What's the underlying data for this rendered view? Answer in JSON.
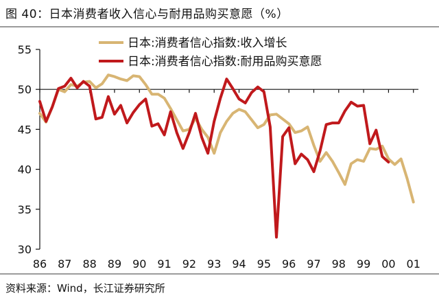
{
  "figure": {
    "title": "图 40：日本消费者收入信心与耐用品购买意愿（%）",
    "source": "资料来源：Wind，长江证券研究所"
  },
  "chart_data": {
    "type": "line",
    "title": "",
    "xlabel": "",
    "ylabel": "",
    "ylim": [
      30,
      55
    ],
    "xlim": [
      1986.0,
      2001.2
    ],
    "yticks": [
      30,
      35,
      40,
      45,
      50,
      55
    ],
    "xtick_labels": [
      "86",
      "87",
      "88",
      "89",
      "90",
      "91",
      "92",
      "93",
      "94",
      "95",
      "96",
      "97",
      "98",
      "99",
      "00",
      "01"
    ],
    "reference_line": 50,
    "legend_position": "top",
    "colors": {
      "income": "#d8b573",
      "durable": "#c0191c"
    },
    "series": [
      {
        "name": "日本:消费者信心指数:收入增长",
        "color": "#d8b573",
        "points": [
          [
            1986.0,
            47.0
          ],
          [
            1986.25,
            45.9
          ],
          [
            1986.5,
            47.8
          ],
          [
            1986.75,
            50.0
          ],
          [
            1987.0,
            49.7
          ],
          [
            1987.25,
            50.6
          ],
          [
            1987.5,
            50.4
          ],
          [
            1987.75,
            50.9
          ],
          [
            1988.0,
            51.0
          ],
          [
            1988.25,
            50.2
          ],
          [
            1988.5,
            50.7
          ],
          [
            1988.75,
            51.8
          ],
          [
            1989.0,
            51.6
          ],
          [
            1989.25,
            51.3
          ],
          [
            1989.5,
            51.1
          ],
          [
            1989.75,
            51.7
          ],
          [
            1990.0,
            51.6
          ],
          [
            1990.25,
            50.6
          ],
          [
            1990.5,
            49.4
          ],
          [
            1990.75,
            49.4
          ],
          [
            1991.0,
            48.9
          ],
          [
            1991.25,
            47.6
          ],
          [
            1991.5,
            46.2
          ],
          [
            1991.75,
            44.8
          ],
          [
            1992.0,
            45.0
          ],
          [
            1992.25,
            46.4
          ],
          [
            1992.5,
            45.0
          ],
          [
            1992.75,
            44.0
          ],
          [
            1993.0,
            42.0
          ],
          [
            1993.25,
            44.6
          ],
          [
            1993.5,
            46.0
          ],
          [
            1993.75,
            47.0
          ],
          [
            1994.0,
            47.5
          ],
          [
            1994.25,
            47.2
          ],
          [
            1994.5,
            46.2
          ],
          [
            1994.75,
            45.2
          ],
          [
            1995.0,
            45.6
          ],
          [
            1995.25,
            46.8
          ],
          [
            1995.5,
            46.9
          ],
          [
            1995.75,
            46.3
          ],
          [
            1996.0,
            45.7
          ],
          [
            1996.25,
            44.6
          ],
          [
            1996.5,
            44.8
          ],
          [
            1996.75,
            45.3
          ],
          [
            1997.0,
            43.0
          ],
          [
            1997.25,
            41.0
          ],
          [
            1997.5,
            42.1
          ],
          [
            1997.75,
            41.0
          ],
          [
            1998.0,
            39.6
          ],
          [
            1998.25,
            38.1
          ],
          [
            1998.5,
            40.7
          ],
          [
            1998.75,
            41.2
          ],
          [
            1999.0,
            41.0
          ],
          [
            1999.25,
            42.6
          ],
          [
            1999.5,
            42.5
          ],
          [
            1999.75,
            42.9
          ],
          [
            2000.0,
            41.3
          ],
          [
            2000.25,
            40.6
          ],
          [
            2000.5,
            41.3
          ],
          [
            2000.75,
            38.8
          ],
          [
            2001.0,
            35.9
          ]
        ]
      },
      {
        "name": "日本:消费者信心指数:耐用品购买意愿",
        "color": "#c0191c",
        "points": [
          [
            1986.0,
            48.5
          ],
          [
            1986.25,
            46.0
          ],
          [
            1986.5,
            47.8
          ],
          [
            1986.75,
            50.1
          ],
          [
            1987.0,
            50.4
          ],
          [
            1987.25,
            51.4
          ],
          [
            1987.5,
            50.2
          ],
          [
            1987.75,
            51.0
          ],
          [
            1988.0,
            50.4
          ],
          [
            1988.25,
            46.3
          ],
          [
            1988.5,
            46.5
          ],
          [
            1988.75,
            49.1
          ],
          [
            1989.0,
            46.9
          ],
          [
            1989.25,
            48.0
          ],
          [
            1989.5,
            45.8
          ],
          [
            1989.75,
            47.1
          ],
          [
            1990.0,
            48.1
          ],
          [
            1990.25,
            48.8
          ],
          [
            1990.5,
            45.4
          ],
          [
            1990.75,
            45.7
          ],
          [
            1991.0,
            44.3
          ],
          [
            1991.25,
            47.2
          ],
          [
            1991.5,
            44.6
          ],
          [
            1991.75,
            42.6
          ],
          [
            1992.0,
            44.6
          ],
          [
            1992.25,
            47.0
          ],
          [
            1992.5,
            44.0
          ],
          [
            1992.75,
            42.0
          ],
          [
            1993.0,
            46.0
          ],
          [
            1993.25,
            48.9
          ],
          [
            1993.5,
            51.3
          ],
          [
            1993.75,
            50.1
          ],
          [
            1994.0,
            48.8
          ],
          [
            1994.25,
            48.3
          ],
          [
            1994.5,
            49.6
          ],
          [
            1994.75,
            50.3
          ],
          [
            1995.0,
            49.7
          ],
          [
            1995.25,
            45.3
          ],
          [
            1995.5,
            31.5
          ],
          [
            1995.75,
            44.1
          ],
          [
            1996.0,
            45.2
          ],
          [
            1996.25,
            40.7
          ],
          [
            1996.5,
            41.9
          ],
          [
            1996.75,
            41.2
          ],
          [
            1997.0,
            39.7
          ],
          [
            1997.25,
            42.3
          ],
          [
            1997.5,
            45.6
          ],
          [
            1997.75,
            45.8
          ],
          [
            1998.0,
            45.8
          ],
          [
            1998.25,
            47.3
          ],
          [
            1998.5,
            48.4
          ],
          [
            1998.75,
            47.9
          ],
          [
            1999.0,
            48.0
          ],
          [
            1999.25,
            43.2
          ],
          [
            1999.5,
            44.9
          ],
          [
            1999.75,
            41.6
          ],
          [
            2000.0,
            40.9
          ]
        ]
      }
    ]
  }
}
